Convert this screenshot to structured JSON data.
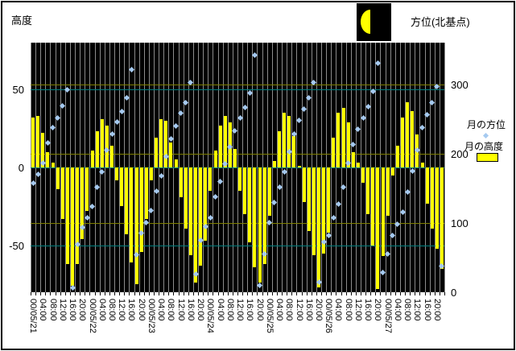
{
  "titles": {
    "left": "高度",
    "right": "方位(北基点)"
  },
  "moon_icon": {
    "bg": "#000000",
    "moon_color": "#FFFF00"
  },
  "legend": {
    "items": [
      {
        "label": "月の方位",
        "marker": "diamond",
        "color": "#A6CAF0"
      },
      {
        "label": "月の高度",
        "marker": "bar",
        "color": "#FFFF00"
      }
    ]
  },
  "chart_data": {
    "type": "composite",
    "title": "",
    "x": {
      "days": [
        "00/05/21",
        "00/05/22",
        "00/05/23",
        "00/05/24",
        "00/05/25",
        "00/05/26",
        "00/05/27"
      ],
      "samples_per_day": 12,
      "interval_hours": 2,
      "time_labels": [
        "04:00",
        "08:00",
        "12:00",
        "16:00",
        "20:00"
      ]
    },
    "left_axis": {
      "title": "高度",
      "min": -80,
      "max": 80,
      "ticks": [
        50,
        0,
        -50
      ],
      "gridline_color": "#008080"
    },
    "right_axis": {
      "title": "方位(北基点)",
      "min": 0,
      "max": 360,
      "ticks": [
        300,
        200,
        100,
        0
      ],
      "gridline_color": "#808000"
    },
    "plot": {
      "bg": "#000000",
      "vgrid_color": "#8C8C8C"
    },
    "series": [
      {
        "name": "月の方位",
        "type": "scatter",
        "marker": "diamond",
        "color": "#A6CAF0",
        "axis": "right",
        "values": [
          157,
          170,
          187,
          215,
          237,
          252,
          269,
          292,
          7,
          69,
          93,
          107,
          124,
          152,
          174,
          205,
          228,
          246,
          261,
          281,
          321,
          54,
          85,
          100,
          118,
          146,
          168,
          196,
          221,
          240,
          258,
          273,
          302,
          26,
          75,
          95,
          108,
          138,
          160,
          185,
          210,
          233,
          251,
          267,
          288,
          342,
          10,
          55,
          100,
          130,
          152,
          174,
          203,
          228,
          248,
          264,
          281,
          302,
          15,
          73,
          82,
          107,
          127,
          152,
          186,
          213,
          235,
          252,
          268,
          290,
          330,
          29,
          55,
          82,
          98,
          116,
          145,
          175,
          205,
          238,
          256,
          274,
          297,
          38
        ]
      },
      {
        "name": "月の高度",
        "type": "bar",
        "color": "#FFFF00",
        "axis": "left",
        "values": [
          32,
          33,
          22,
          10,
          3,
          -14,
          -33,
          -62,
          -76,
          -62,
          -46,
          -28,
          11,
          23,
          31,
          27,
          14,
          -8,
          -25,
          -43,
          -61,
          -75,
          -54,
          -33,
          -8,
          19,
          31,
          30,
          16,
          5,
          -19,
          -39,
          -56,
          -74,
          -63,
          -47,
          -15,
          11,
          27,
          33,
          29,
          12,
          -15,
          -30,
          -48,
          -64,
          -74,
          -62,
          -31,
          4,
          23,
          35,
          33,
          20,
          1,
          -22,
          -41,
          -56,
          -77,
          -55,
          -42,
          19,
          35,
          38,
          29,
          10,
          3,
          -10,
          -30,
          -50,
          -78,
          -57,
          -31,
          -5,
          14,
          32,
          42,
          36,
          21,
          3,
          -23,
          -39,
          -52,
          -65
        ]
      }
    ]
  }
}
